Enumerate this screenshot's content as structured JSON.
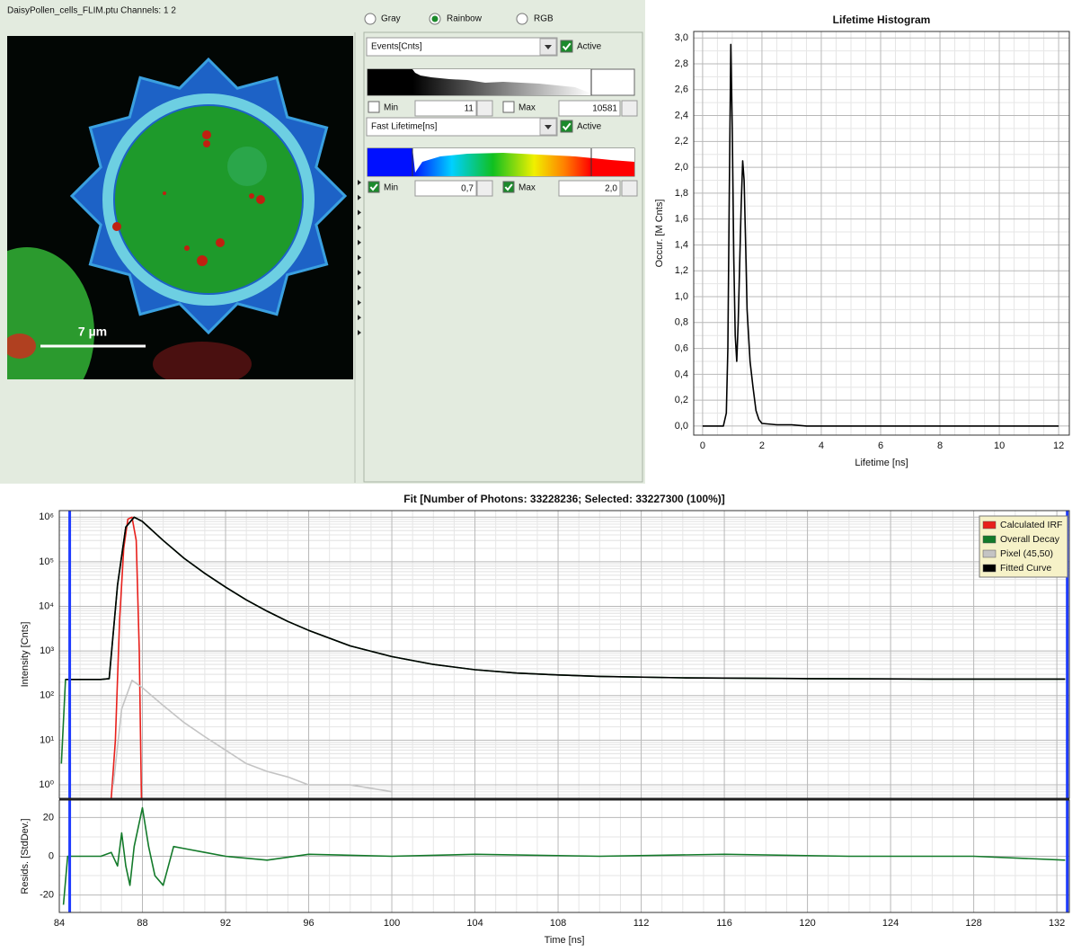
{
  "image_panel": {
    "title": "DaisyPollen_cells_FLIM.ptu Channels: 1 2",
    "scale_bar": "7 µm"
  },
  "controls": {
    "color_modes": [
      "Gray",
      "Rainbow",
      "RGB"
    ],
    "selected_mode": "Rainbow",
    "intensity": {
      "channel": "Events[Cnts]",
      "active_label": "Active",
      "active": true,
      "min_label": "Min",
      "min_checked": false,
      "min": 11,
      "max_label": "Max",
      "max_checked": false,
      "max": 10581
    },
    "lifetime": {
      "channel": "Fast Lifetime[ns]",
      "active_label": "Active",
      "active": true,
      "min_label": "Min",
      "min_checked": true,
      "min": "0,7",
      "max_label": "Max",
      "max_checked": true,
      "max": "2,0"
    }
  },
  "chart_data": [
    {
      "type": "line",
      "title": "Lifetime Histogram",
      "xlabel": "Lifetime [ns]",
      "ylabel": "Occur. [M Cnts]",
      "x": [
        0,
        0.7,
        0.8,
        0.85,
        0.9,
        0.95,
        1.0,
        1.05,
        1.1,
        1.15,
        1.2,
        1.3,
        1.35,
        1.4,
        1.45,
        1.5,
        1.6,
        1.7,
        1.8,
        1.9,
        2,
        2.5,
        3,
        3.5,
        12
      ],
      "values": [
        0,
        0,
        0.1,
        0.6,
        1.8,
        2.95,
        2.3,
        1.3,
        0.7,
        0.5,
        0.8,
        1.7,
        2.05,
        1.9,
        1.4,
        0.9,
        0.5,
        0.3,
        0.12,
        0.05,
        0.02,
        0.01,
        0.01,
        0,
        0
      ],
      "color": "#000000",
      "xlim": [
        -0.3,
        12.36
      ],
      "xticks": [
        0,
        2,
        4,
        6,
        8,
        10,
        12
      ],
      "ylim": [
        -0.07,
        3.05
      ],
      "yticks": [
        {
          "value": 0,
          "label": "0,0"
        },
        {
          "value": 0.2,
          "label": "0,2"
        },
        {
          "value": 0.4,
          "label": "0,4"
        },
        {
          "value": 0.6,
          "label": "0,6"
        },
        {
          "value": 0.8,
          "label": "0,8"
        },
        {
          "value": 1.0,
          "label": "1,0"
        },
        {
          "value": 1.2,
          "label": "1,2"
        },
        {
          "value": 1.4,
          "label": "1,4"
        },
        {
          "value": 1.6,
          "label": "1,6"
        },
        {
          "value": 1.8,
          "label": "1,8"
        },
        {
          "value": 2.0,
          "label": "2,0"
        },
        {
          "value": 2.2,
          "label": "2,2"
        },
        {
          "value": 2.4,
          "label": "2,4"
        },
        {
          "value": 2.6,
          "label": "2,6"
        },
        {
          "value": 2.8,
          "label": "2,8"
        },
        {
          "value": 3.0,
          "label": "3,0"
        }
      ],
      "grid": true,
      "minor_grid": true
    },
    {
      "type": "line",
      "title": "Fit [Number of Photons: 33228236; Selected: 33227300 (100%)]",
      "ylabel": "Intensity [Cnts]",
      "log_y": true,
      "grid": true,
      "minor_grid": true,
      "legend": "top-right",
      "x_tick_labels": false,
      "xlim": [
        84,
        132.6
      ],
      "xticks": [
        84,
        88,
        92,
        96,
        100,
        104,
        108,
        112,
        116,
        120,
        124,
        128,
        132
      ],
      "ylim": [
        0.5,
        1400000
      ],
      "yticks": [
        {
          "value": 1,
          "label": "10⁰"
        },
        {
          "value": 10,
          "label": "10¹"
        },
        {
          "value": 100,
          "label": "10²"
        },
        {
          "value": 1000,
          "label": "10³"
        },
        {
          "value": 10000,
          "label": "10⁴"
        },
        {
          "value": 100000,
          "label": "10⁵"
        },
        {
          "value": 1000000,
          "label": "10⁶"
        }
      ],
      "cursors": [
        84.5,
        132.5
      ],
      "series": [
        {
          "name": "Calculated IRF",
          "color": "#e8201c",
          "x": [
            86.5,
            86.7,
            86.9,
            87.1,
            87.3,
            87.5,
            87.7,
            87.85,
            87.95
          ],
          "values": [
            0.5,
            10,
            5000,
            200000,
            900000,
            1000000,
            300000,
            1000,
            0.5
          ]
        },
        {
          "name": "Overall Decay",
          "color": "#137a2a",
          "x": [
            84.1,
            84.3,
            85,
            86,
            86.4,
            86.8,
            87.2,
            87.6,
            88,
            89,
            90,
            91,
            92,
            93,
            94,
            95,
            96,
            98,
            100,
            102,
            104,
            106,
            108,
            110,
            114,
            120,
            126,
            132.4
          ],
          "values": [
            3,
            230,
            230,
            230,
            240,
            30000,
            600000,
            1000000,
            800000,
            300000,
            120000,
            55000,
            27000,
            14000,
            7800,
            4600,
            2900,
            1300,
            750,
            500,
            380,
            320,
            290,
            270,
            250,
            240,
            235,
            235
          ]
        },
        {
          "name": "Pixel (45,50)",
          "color": "#c4c4c4",
          "x": [
            86.6,
            87,
            87.5,
            88,
            89,
            90,
            91,
            92,
            93,
            94,
            95,
            96,
            98,
            100
          ],
          "values": [
            1,
            50,
            220,
            150,
            60,
            25,
            12,
            6,
            3,
            2,
            1.5,
            1,
            1,
            0.7
          ]
        },
        {
          "name": "Fitted Curve",
          "color": "#000000",
          "x": [
            84.3,
            85,
            86,
            86.4,
            86.8,
            87.2,
            87.6,
            88,
            89,
            90,
            91,
            92,
            93,
            94,
            95,
            96,
            98,
            100,
            102,
            104,
            106,
            108,
            110,
            114,
            120,
            126,
            132.4
          ],
          "values": [
            230,
            230,
            230,
            240,
            30000,
            600000,
            1000000,
            800000,
            300000,
            120000,
            55000,
            27000,
            14000,
            7800,
            4600,
            2900,
            1300,
            750,
            500,
            380,
            320,
            290,
            270,
            250,
            240,
            235,
            235
          ]
        }
      ]
    },
    {
      "type": "line",
      "xlabel": "Time [ns]",
      "ylabel": "Resids. [StdDev.]",
      "grid": true,
      "minor_grid": true,
      "xlim": [
        84,
        132.6
      ],
      "xticks": [
        84,
        88,
        92,
        96,
        100,
        104,
        108,
        112,
        116,
        120,
        124,
        128,
        132
      ],
      "ylim": [
        -29,
        29
      ],
      "yticks": [
        20,
        0,
        -20
      ],
      "cursors": [
        84.5,
        132.5
      ],
      "color": "#137a2a",
      "x": [
        84.2,
        84.4,
        86,
        86.5,
        86.8,
        87,
        87.2,
        87.4,
        87.6,
        88,
        88.3,
        88.6,
        89,
        89.5,
        90,
        91,
        92,
        94,
        96,
        100,
        104,
        110,
        116,
        122,
        128,
        132.4
      ],
      "values": [
        -25,
        0,
        0,
        2,
        -5,
        12,
        -5,
        -15,
        5,
        25,
        5,
        -10,
        -15,
        5,
        4,
        2,
        0,
        -2,
        1,
        0,
        1,
        0,
        1,
        0,
        0,
        -2
      ]
    }
  ]
}
